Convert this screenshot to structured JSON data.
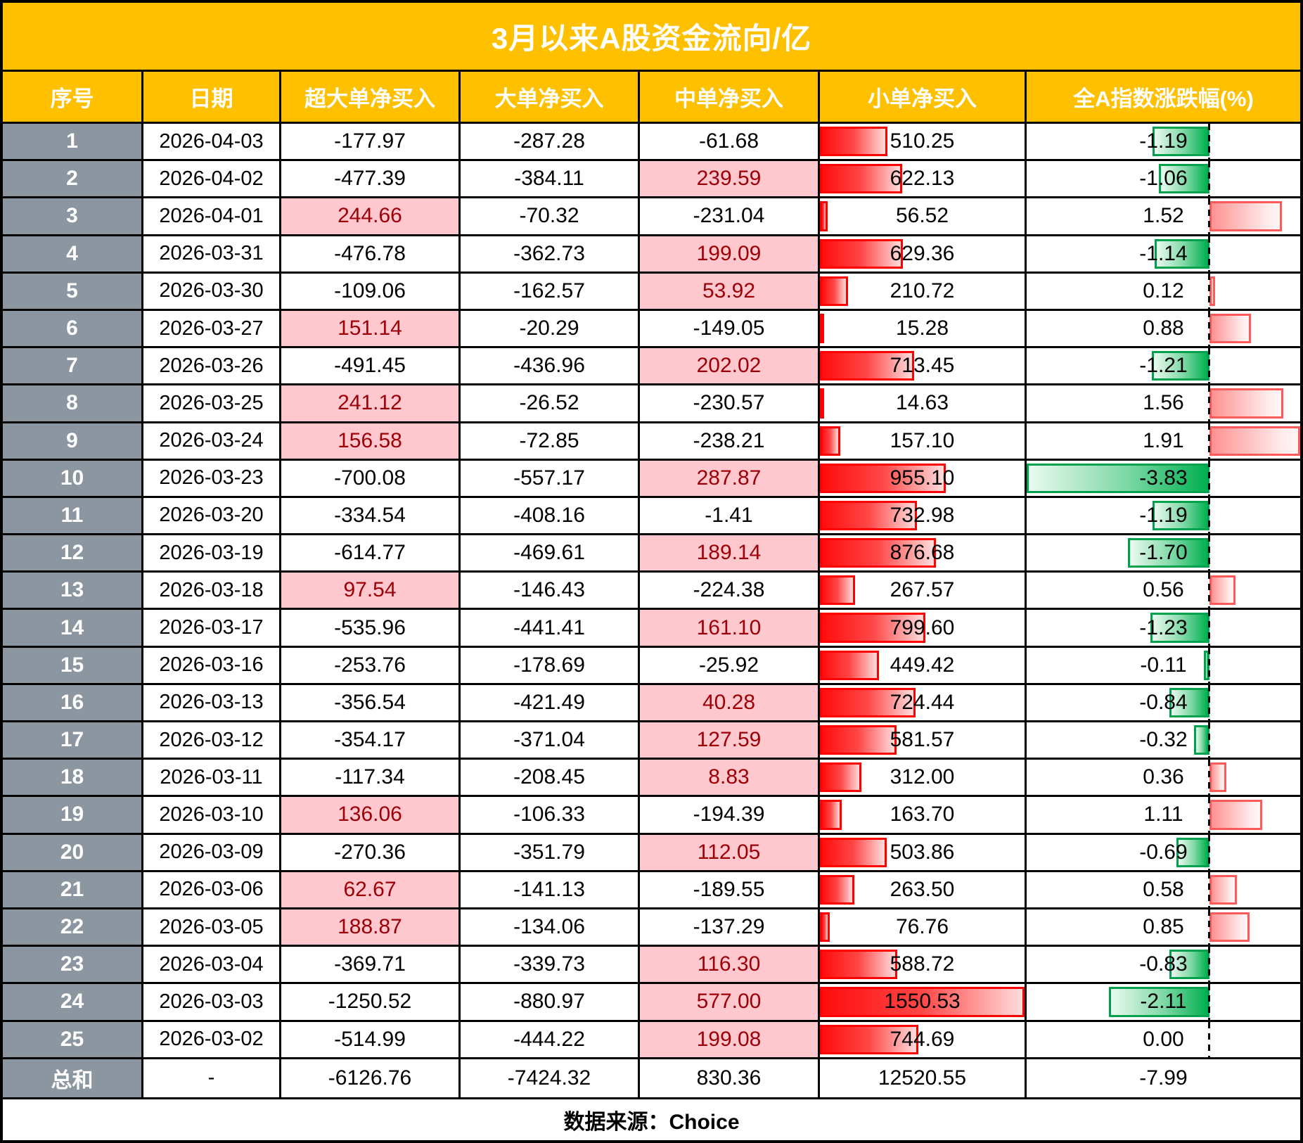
{
  "title": "3月以来A股资金流向/亿",
  "columns": [
    "序号",
    "日期",
    "超大单净买入",
    "大单净买入",
    "中单净买入",
    "小单净买入",
    "全A指数涨跌幅(%)"
  ],
  "footer_note": "数据来源：Choice",
  "colors": {
    "header_bg": "#FFC000",
    "seq_column_bg": "#8C96A0",
    "positive_highlight_bg": "#FFC7CE",
    "positive_highlight_text": "#9C0006",
    "databar_red": "#FF0000",
    "databar_green": "#00B050",
    "grid_border": "#000000"
  },
  "chart_data": {
    "type": "table",
    "title": "3月以来A股资金流向/亿",
    "columns": [
      "序号",
      "日期",
      "超大单净买入",
      "大单净买入",
      "中单净买入",
      "小单净买入",
      "全A指数涨跌幅(%)"
    ],
    "rows": [
      [
        1,
        "2026-04-03",
        -177.97,
        -287.28,
        -61.68,
        510.25,
        -1.19
      ],
      [
        2,
        "2026-04-02",
        -477.39,
        -384.11,
        239.59,
        622.13,
        -1.06
      ],
      [
        3,
        "2026-04-01",
        244.66,
        -70.32,
        -231.04,
        56.52,
        1.52
      ],
      [
        4,
        "2026-03-31",
        -476.78,
        -362.73,
        199.09,
        629.36,
        -1.14
      ],
      [
        5,
        "2026-03-30",
        -109.06,
        -162.57,
        53.92,
        210.72,
        0.12
      ],
      [
        6,
        "2026-03-27",
        151.14,
        -20.29,
        -149.05,
        15.28,
        0.88
      ],
      [
        7,
        "2026-03-26",
        -491.45,
        -436.96,
        202.02,
        713.45,
        -1.21
      ],
      [
        8,
        "2026-03-25",
        241.12,
        -26.52,
        -230.57,
        14.63,
        1.56
      ],
      [
        9,
        "2026-03-24",
        156.58,
        -72.85,
        -238.21,
        157.1,
        1.91
      ],
      [
        10,
        "2026-03-23",
        -700.08,
        -557.17,
        287.87,
        955.1,
        -3.83
      ],
      [
        11,
        "2026-03-20",
        -334.54,
        -408.16,
        -1.41,
        732.98,
        -1.19
      ],
      [
        12,
        "2026-03-19",
        -614.77,
        -469.61,
        189.14,
        876.68,
        -1.7
      ],
      [
        13,
        "2026-03-18",
        97.54,
        -146.43,
        -224.38,
        267.57,
        0.56
      ],
      [
        14,
        "2026-03-17",
        -535.96,
        -441.41,
        161.1,
        799.6,
        -1.23
      ],
      [
        15,
        "2026-03-16",
        -253.76,
        -178.69,
        -25.92,
        449.42,
        -0.11
      ],
      [
        16,
        "2026-03-13",
        -356.54,
        -421.49,
        40.28,
        724.44,
        -0.84
      ],
      [
        17,
        "2026-03-12",
        -354.17,
        -371.04,
        127.59,
        581.57,
        -0.32
      ],
      [
        18,
        "2026-03-11",
        -117.34,
        -208.45,
        8.83,
        312.0,
        0.36
      ],
      [
        19,
        "2026-03-10",
        136.06,
        -106.33,
        -194.39,
        163.7,
        1.11
      ],
      [
        20,
        "2026-03-09",
        -270.36,
        -351.79,
        112.05,
        503.86,
        -0.69
      ],
      [
        21,
        "2026-03-06",
        62.67,
        -141.13,
        -189.55,
        263.5,
        0.58
      ],
      [
        22,
        "2026-03-05",
        188.87,
        -134.06,
        -137.29,
        76.76,
        0.85
      ],
      [
        23,
        "2026-03-04",
        -369.71,
        -339.73,
        116.3,
        588.72,
        -0.83
      ],
      [
        24,
        "2026-03-03",
        -1250.52,
        -880.97,
        577.0,
        1550.53,
        -2.11
      ],
      [
        25,
        "2026-03-02",
        -514.99,
        -444.22,
        199.08,
        744.69,
        0.0
      ]
    ],
    "total_row": [
      "总和",
      "-",
      -6126.76,
      -7424.32,
      830.36,
      12520.55,
      -7.99
    ],
    "databar_small_order_max": 1550.53,
    "databar_index_min": -3.83,
    "databar_index_max": 1.91,
    "conditional_formatting": "positive values in 超大单/大单/中单 columns highlighted pink with dark red text; 小单净买入 has red data bars; 全A指数涨跌幅 has green bars (negative, left of dashed zero axis) and red bars (positive, right of axis)"
  }
}
